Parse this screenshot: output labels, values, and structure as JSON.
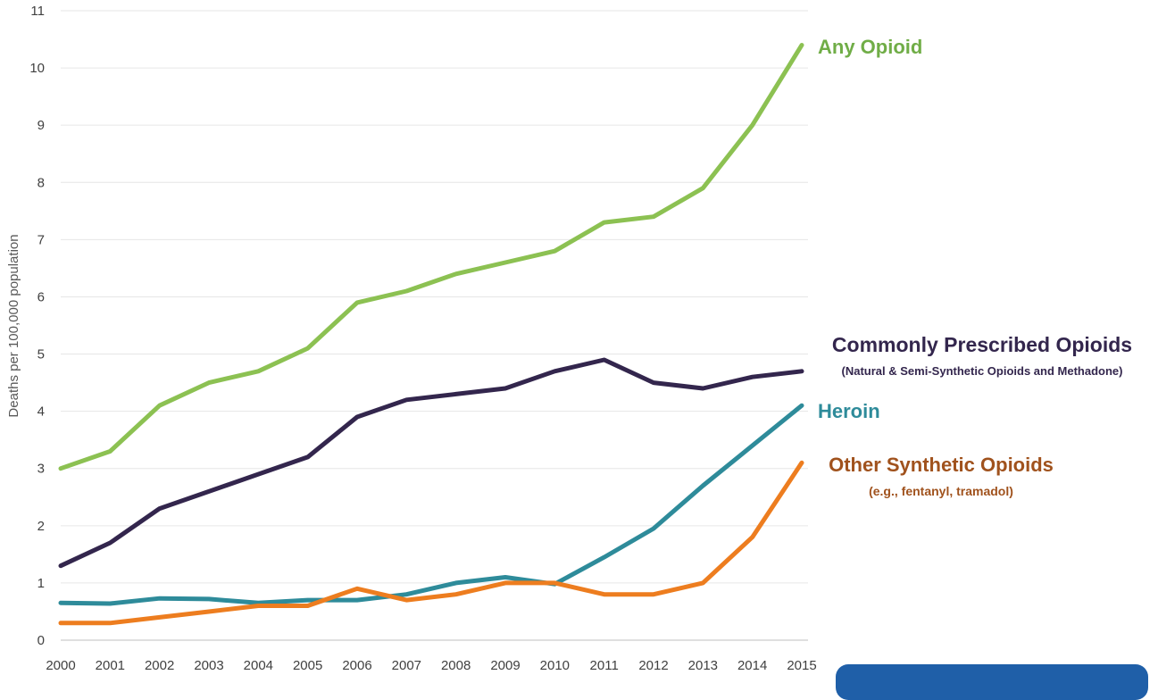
{
  "chart_data": {
    "type": "line",
    "title": "",
    "xlabel": "",
    "ylabel": "Deaths per 100,000 population",
    "ylim": [
      0,
      11
    ],
    "yticks": [
      "0",
      "1",
      "2",
      "3",
      "4",
      "5",
      "6",
      "7",
      "8",
      "9",
      "10",
      "11"
    ],
    "grid": "horizontal",
    "legend": "direct labels at right end of lines",
    "x": [
      "2000",
      "2001",
      "2002",
      "2003",
      "2004",
      "2005",
      "2006",
      "2007",
      "2008",
      "2009",
      "2010",
      "2011",
      "2012",
      "2013",
      "2014",
      "2015"
    ],
    "series": [
      {
        "name": "Any Opioid",
        "subtitle": "",
        "color": "#8cc152",
        "values": [
          3.0,
          3.3,
          4.1,
          4.5,
          4.7,
          5.1,
          5.9,
          6.1,
          6.4,
          6.6,
          6.8,
          7.3,
          7.4,
          7.9,
          9.0,
          10.4
        ]
      },
      {
        "name": "Commonly Prescribed Opioids",
        "subtitle": "(Natural & Semi-Synthetic Opioids and Methadone)",
        "color": "#33264d",
        "values": [
          1.3,
          1.7,
          2.3,
          2.6,
          2.9,
          3.2,
          3.9,
          4.2,
          4.3,
          4.4,
          4.7,
          4.9,
          4.5,
          4.4,
          4.6,
          4.7
        ]
      },
      {
        "name": "Heroin",
        "subtitle": "",
        "color": "#2e8b9a",
        "values": [
          0.65,
          0.64,
          0.73,
          0.72,
          0.65,
          0.7,
          0.7,
          0.8,
          1.0,
          1.1,
          0.98,
          1.45,
          1.95,
          2.7,
          3.4,
          4.1
        ]
      },
      {
        "name": "Other Synthetic Opioids",
        "subtitle": "(e.g., fentanyl, tramadol)",
        "color": "#ed7d1f",
        "values": [
          0.3,
          0.3,
          0.4,
          0.5,
          0.6,
          0.6,
          0.9,
          0.7,
          0.8,
          1.0,
          1.0,
          0.8,
          0.8,
          1.0,
          1.8,
          3.1
        ]
      }
    ]
  },
  "label_colors": {
    "Any Opioid": "#70ad47",
    "Commonly Prescribed Opioids": "#33264d",
    "Heroin": "#2e8b9a",
    "Other Synthetic Opioids": "#a0521d"
  }
}
